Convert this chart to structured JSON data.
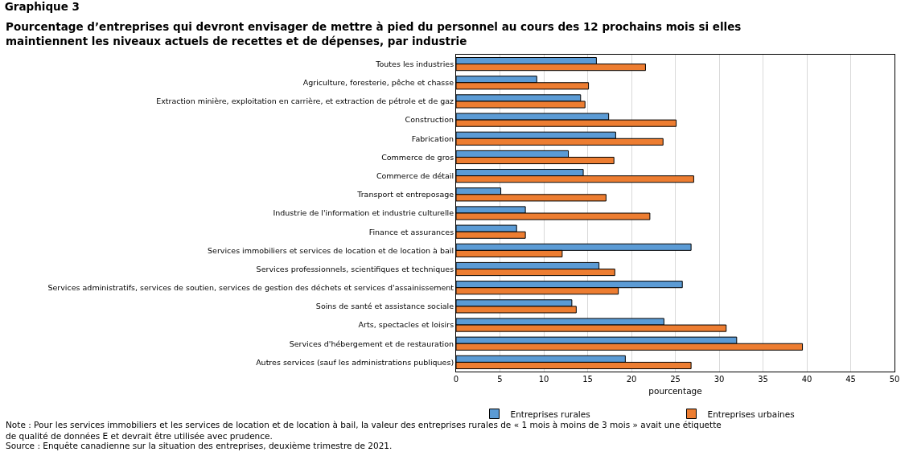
{
  "chart_data": {
    "type": "bar",
    "orientation": "horizontal",
    "title": "Graphique 3",
    "subtitle": "Pourcentage d’entreprises qui devront envisager de mettre à pied du personnel au cours des 12 prochains mois si elles maintiennent les niveaux actuels de recettes et de dépenses, par industrie",
    "xlabel": "pourcentage",
    "categories": [
      "Toutes les industries",
      "Agriculture, foresterie, pêche et chasse",
      "Extraction minière, exploitation en carrière, et extraction de pétrole et de gaz",
      "Construction",
      "Fabrication",
      "Commerce de gros",
      "Commerce de détail",
      "Transport et entreposage",
      "Industrie de l'information et industrie culturelle",
      "Finance et assurances",
      "Services immobiliers et services de location et de location à bail",
      "Services professionnels, scientifiques et techniques",
      "Services administratifs, services de soutien, services de gestion des déchets et services d'assainissement",
      "Soins de santé et assistance sociale",
      "Arts, spectacles et loisirs",
      "Services d'hébergement et de restauration",
      "Autres services (sauf les administrations publiques)"
    ],
    "series": [
      {
        "name": "Entreprises rurales",
        "color": "#5b9bd5",
        "values": [
          16.0,
          9.2,
          14.2,
          17.4,
          18.2,
          12.8,
          14.5,
          5.1,
          7.9,
          6.9,
          26.8,
          16.3,
          25.8,
          13.2,
          23.7,
          32.0,
          19.3
        ]
      },
      {
        "name": "Entreprises urbaines",
        "color": "#ed7d31",
        "values": [
          21.6,
          15.1,
          14.7,
          25.1,
          23.6,
          18.0,
          27.1,
          17.1,
          22.1,
          7.9,
          12.1,
          18.1,
          18.5,
          13.7,
          30.8,
          39.5,
          26.8
        ]
      }
    ],
    "xlim": [
      0,
      50
    ],
    "xticks": [
      0,
      5,
      10,
      15,
      20,
      25,
      30,
      35,
      40,
      45,
      50
    ],
    "grid": "x",
    "legend": "bottom",
    "annotations": [
      "Note : Pour les services immobiliers et les services de location et de location à bail, la valeur des entreprises rurales de « 1 mois à moins de 3 mois » avait une étiquette de qualité de données E et devrait être utilisée avec prudence.",
      "Source : Enquête canadienne sur la situation des entreprises, deuxième trimestre de 2021."
    ]
  }
}
